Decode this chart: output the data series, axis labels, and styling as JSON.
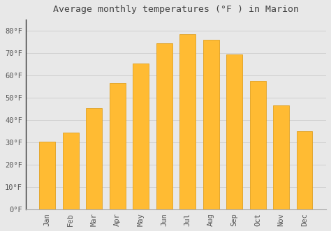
{
  "title": "Average monthly temperatures (°F ) in Marion",
  "months": [
    "Jan",
    "Feb",
    "Mar",
    "Apr",
    "May",
    "Jun",
    "Jul",
    "Aug",
    "Sep",
    "Oct",
    "Nov",
    "Dec"
  ],
  "values": [
    30.5,
    34.5,
    45.5,
    56.5,
    65.5,
    74.5,
    78.5,
    76.0,
    69.5,
    57.5,
    46.5,
    35.0
  ],
  "bar_color": "#FFBB33",
  "bar_edge_color": "#E0A020",
  "background_color": "#e8e8e8",
  "plot_bg_color": "#e8e8e8",
  "grid_color": "#cccccc",
  "left_spine_color": "#333333",
  "ylim": [
    0,
    85
  ],
  "yticks": [
    0,
    10,
    20,
    30,
    40,
    50,
    60,
    70,
    80
  ],
  "ytick_labels": [
    "0°F",
    "10°F",
    "20°F",
    "30°F",
    "40°F",
    "50°F",
    "60°F",
    "70°F",
    "80°F"
  ],
  "title_fontsize": 9.5,
  "tick_fontsize": 7.5,
  "title_color": "#444444",
  "tick_color": "#555555",
  "bar_width": 0.68
}
